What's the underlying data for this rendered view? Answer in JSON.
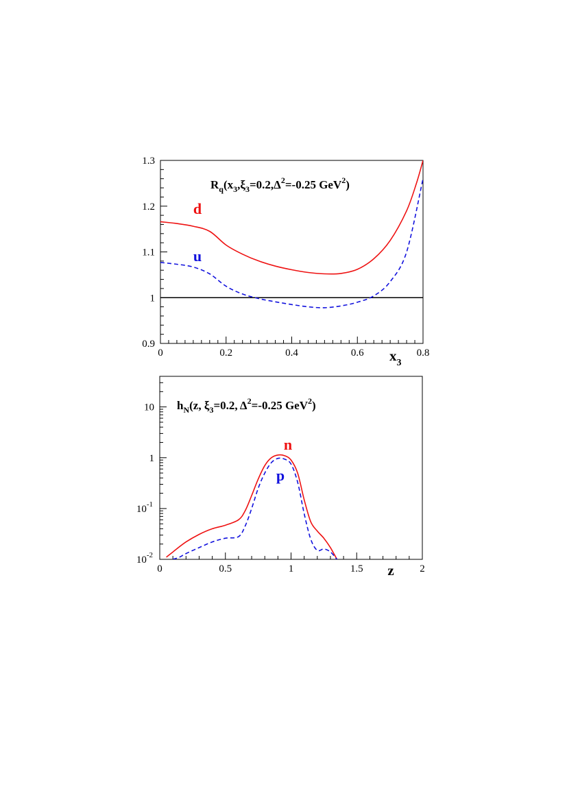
{
  "chart_data": [
    {
      "type": "line",
      "title_main": "R",
      "title_sub": "q",
      "title_args": "(x",
      "title_args_sub": "3",
      "title_mid": ",ξ",
      "title_mid_sub": "3",
      "title_tail": "=0.2,Δ",
      "title_tail_sup": "2",
      "title_end": "=-0.25 GeV",
      "title_end_sup": "2",
      "title_close": ")",
      "xlabel": "x",
      "xlabel_sub": "3",
      "ylabel": "",
      "xlim": [
        0,
        0.8
      ],
      "ylim": [
        0.9,
        1.3
      ],
      "xticks": [
        "0",
        "0.2",
        "0.4",
        "0.6",
        "0.8"
      ],
      "yticks": [
        "0.9",
        "1",
        "1.1",
        "1.2",
        "1.3"
      ],
      "reference_line": 1.0,
      "series": [
        {
          "name": "d",
          "color": "#ee1111",
          "dash": "solid",
          "x": [
            0,
            0.05,
            0.1,
            0.15,
            0.2,
            0.25,
            0.3,
            0.35,
            0.4,
            0.45,
            0.5,
            0.55,
            0.6,
            0.65,
            0.7,
            0.75,
            0.78,
            0.8
          ],
          "y": [
            1.166,
            1.162,
            1.156,
            1.145,
            1.115,
            1.095,
            1.08,
            1.069,
            1.061,
            1.055,
            1.052,
            1.053,
            1.062,
            1.085,
            1.125,
            1.19,
            1.25,
            1.3
          ]
        },
        {
          "name": "u",
          "color": "#1111dd",
          "dash": "dashed",
          "x": [
            0,
            0.05,
            0.1,
            0.15,
            0.2,
            0.25,
            0.3,
            0.35,
            0.4,
            0.45,
            0.5,
            0.55,
            0.6,
            0.65,
            0.7,
            0.75,
            0.8
          ],
          "y": [
            1.077,
            1.073,
            1.067,
            1.052,
            1.025,
            1.008,
            0.998,
            0.991,
            0.985,
            0.98,
            0.978,
            0.982,
            0.99,
            1.004,
            1.035,
            1.1,
            1.26
          ]
        }
      ]
    },
    {
      "type": "line",
      "yscale": "log",
      "title_main": "h",
      "title_sub": "N",
      "title_args": "(z, ξ",
      "title_args_sub": "3",
      "title_tail": "=0.2, Δ",
      "title_tail_sup": "2",
      "title_end": "=-0.25 GeV",
      "title_end_sup": "2",
      "title_close": ")",
      "xlabel": "z",
      "ylabel": "",
      "xlim": [
        0,
        2
      ],
      "ylim": [
        0.01,
        40
      ],
      "xticks": [
        "0",
        "0.5",
        "1",
        "1.5",
        "2"
      ],
      "yticks": [
        {
          "base": "10",
          "exp": "-2",
          "value": 0.01
        },
        {
          "base": "10",
          "exp": "-1",
          "value": 0.1
        },
        {
          "base": "1",
          "exp": "",
          "value": 1
        },
        {
          "base": "10",
          "exp": "",
          "value": 10
        }
      ],
      "series": [
        {
          "name": "n",
          "color": "#ee1111",
          "dash": "solid",
          "x": [
            0.05,
            0.1,
            0.2,
            0.3,
            0.4,
            0.5,
            0.6,
            0.65,
            0.7,
            0.75,
            0.8,
            0.85,
            0.9,
            0.95,
            1.0,
            1.05,
            1.1,
            1.15,
            1.2,
            1.25,
            1.3,
            1.35
          ],
          "y": [
            0.011,
            0.014,
            0.022,
            0.031,
            0.04,
            0.047,
            0.06,
            0.09,
            0.18,
            0.38,
            0.7,
            1.0,
            1.13,
            1.1,
            0.9,
            0.5,
            0.15,
            0.055,
            0.036,
            0.026,
            0.017,
            0.01
          ]
        },
        {
          "name": "p",
          "color": "#1111dd",
          "dash": "dashed",
          "x": [
            0.1,
            0.15,
            0.2,
            0.3,
            0.4,
            0.5,
            0.6,
            0.65,
            0.7,
            0.75,
            0.8,
            0.85,
            0.9,
            0.95,
            1.0,
            1.05,
            1.1,
            1.15,
            1.2,
            1.25,
            1.3,
            1.35
          ],
          "y": [
            0.01,
            0.011,
            0.013,
            0.017,
            0.022,
            0.026,
            0.028,
            0.045,
            0.1,
            0.25,
            0.5,
            0.8,
            0.97,
            0.94,
            0.75,
            0.33,
            0.08,
            0.025,
            0.015,
            0.016,
            0.014,
            0.01
          ]
        }
      ]
    }
  ]
}
